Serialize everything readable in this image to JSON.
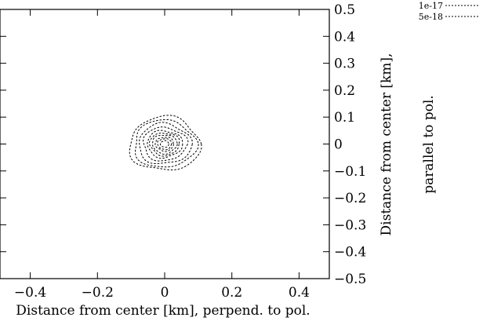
{
  "chart_data": {
    "type": "contour",
    "title": "",
    "xlabel": "Distance from center [km], perpend. to pol.",
    "ylabel_line1": "Distance from center [km],",
    "ylabel_line2": "parallel to pol.",
    "xlim": [
      -0.49,
      0.49
    ],
    "ylim": [
      -0.5,
      0.5
    ],
    "x_ticks": [
      -0.4,
      -0.2,
      0,
      0.2,
      0.4
    ],
    "x_tick_labels": [
      "−0.4",
      "−0.2",
      "0",
      "0.2",
      "0.4"
    ],
    "y_ticks": [
      0.5,
      0.4,
      0.3,
      0.2,
      0.1,
      0,
      -0.1,
      -0.2,
      -0.3,
      -0.4,
      -0.5
    ],
    "y_tick_labels": [
      "0.5",
      "0.4",
      "0.3",
      "0.2",
      "0.1",
      "0",
      "−0.1",
      "−0.2",
      "−0.3",
      "−0.4",
      "−0.5"
    ],
    "grid": false,
    "legend_position": "top-right",
    "line_color": "#000000",
    "line_style": "dashed",
    "center": [
      0.0,
      0.0
    ],
    "series": [
      {
        "name": "1e-17",
        "contour_radii": [
          0.1,
          0.075,
          0.05,
          0.035,
          0.02
        ]
      },
      {
        "name": "5e-18",
        "contour_radii": [
          0.088,
          0.062,
          0.042,
          0.026,
          0.012
        ]
      }
    ]
  }
}
